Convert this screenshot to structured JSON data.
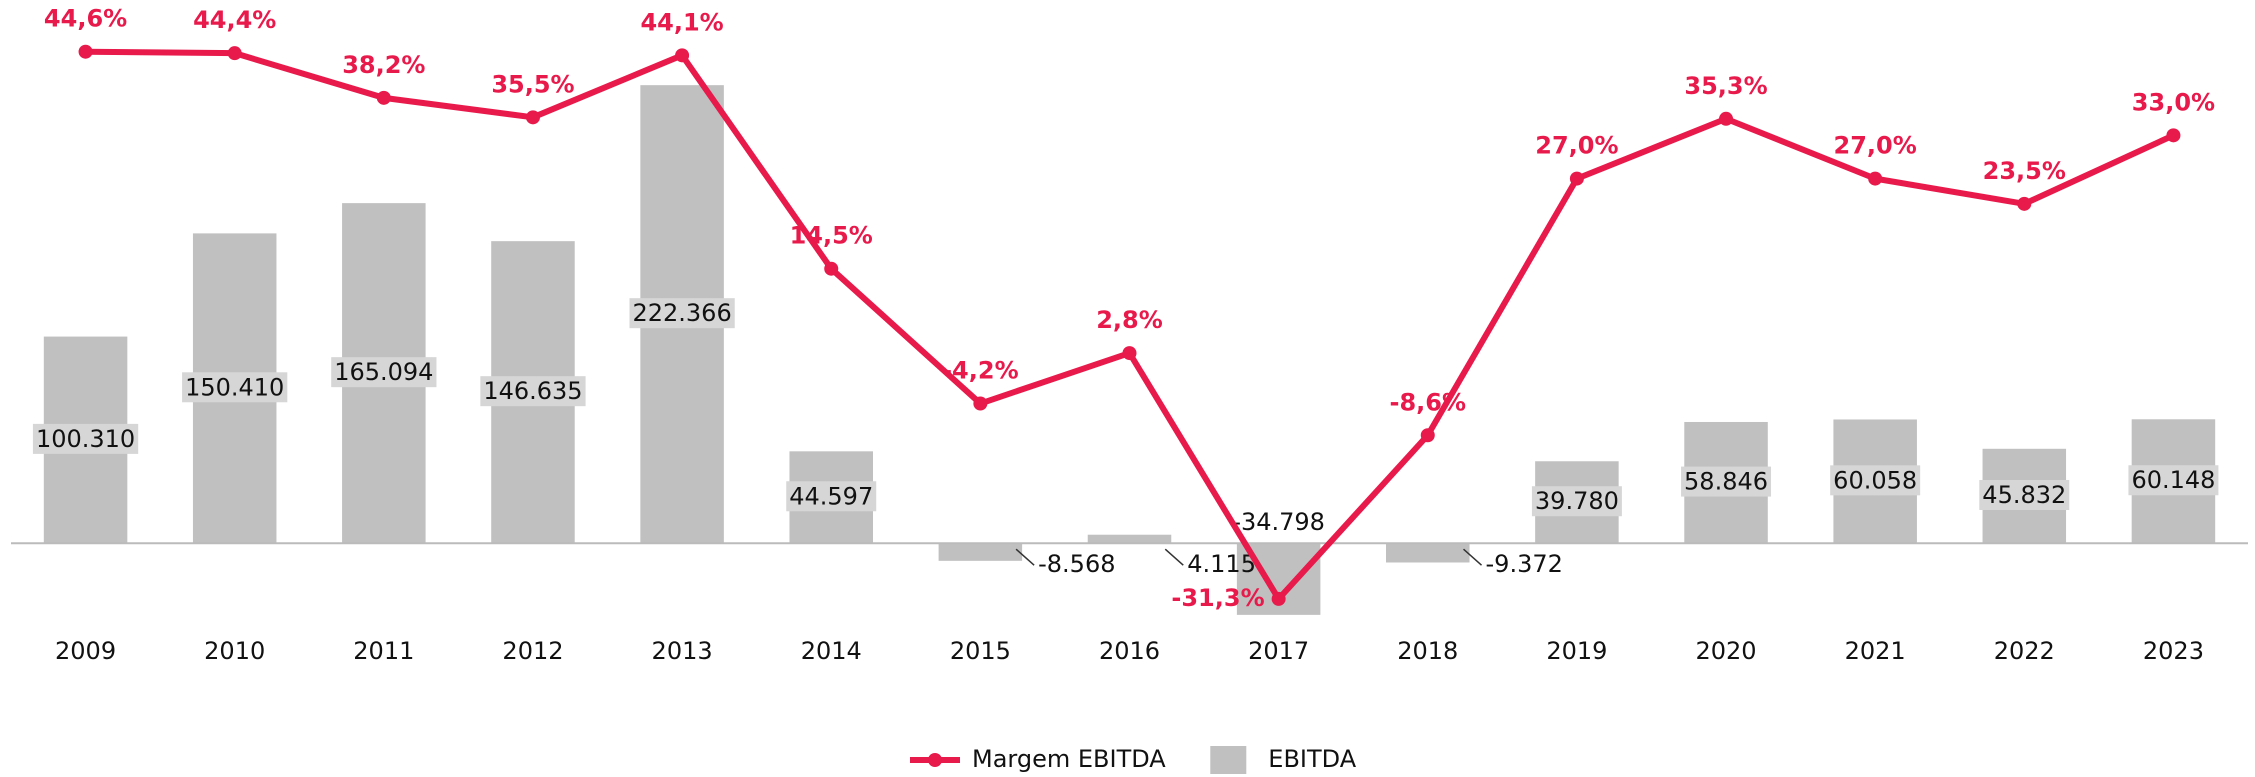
{
  "chart_data": {
    "type": "bar",
    "categories": [
      "2009",
      "2010",
      "2011",
      "2012",
      "2013",
      "2014",
      "2015",
      "2016",
      "2017",
      "2018",
      "2019",
      "2020",
      "2021",
      "2022",
      "2023"
    ],
    "series": [
      {
        "name": "EBITDA",
        "type": "bar",
        "color": "#c0c0c0",
        "values": [
          100310,
          150410,
          165094,
          146635,
          222366,
          44597,
          -8568,
          4115,
          -34798,
          -9372,
          39780,
          58846,
          60058,
          45832,
          60148
        ],
        "value_labels": [
          "100.310",
          "150.410",
          "165.094",
          "146.635",
          "222.366",
          "44.597",
          "-8.568",
          "4.115",
          "-34.798",
          "-9.372",
          "39.780",
          "58.846",
          "60.058",
          "45.832",
          "60.148"
        ]
      },
      {
        "name": "Margem EBITDA",
        "type": "line",
        "axis": "y2",
        "color": "#e8194b",
        "values": [
          44.6,
          44.4,
          38.2,
          35.5,
          44.1,
          14.5,
          -4.2,
          2.8,
          -31.3,
          -8.6,
          27.0,
          35.3,
          27.0,
          23.5,
          33.0
        ],
        "value_labels": [
          "44,6%",
          "44,4%",
          "38,2%",
          "35,5%",
          "44,1%",
          "14,5%",
          "-4,2%",
          "2,8%",
          "-31,3%",
          "-8,6%",
          "27,0%",
          "35,3%",
          "27,0%",
          "23,5%",
          "33,0%"
        ]
      }
    ],
    "ylim": [
      -47000,
      254000
    ],
    "y2lim": [
      -37,
      49
    ],
    "legend": "bottom"
  }
}
